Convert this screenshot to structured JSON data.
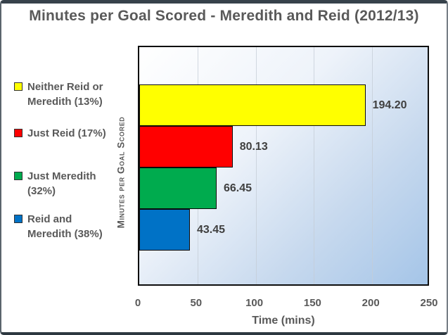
{
  "chart_data": {
    "type": "bar",
    "orientation": "horizontal",
    "title": "Minutes per Goal Scored - Meredith and Reid (2012/13)",
    "xlabel": "Time (mins)",
    "ylabel": "Minutes per Goal Scored",
    "xlim": [
      0,
      250
    ],
    "x_ticks": [
      "0",
      "50",
      "100",
      "150",
      "200",
      "250"
    ],
    "grid": true,
    "legend_position": "left",
    "categories": [
      "Neither Reid or Meredith (13%)",
      "Just Reid (17%)",
      "Just Meredith (32%)",
      "Reid and Meredith (38%)"
    ],
    "values": [
      194.2,
      80.13,
      66.45,
      43.45
    ],
    "value_labels": [
      "194.20",
      "80.13",
      "66.45",
      "43.45"
    ],
    "bar_colors": [
      "#FFFF00",
      "#FF0000",
      "#00AB4E",
      "#0072C6"
    ],
    "plot_background": [
      "#FFFFFF",
      "#A5C5E8"
    ],
    "text_color": "#595959",
    "value_label_color": "#404040"
  }
}
